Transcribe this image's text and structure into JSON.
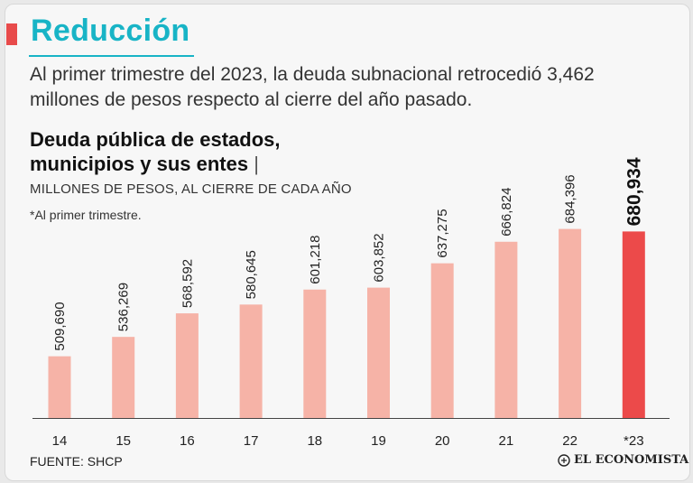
{
  "header": {
    "title": "Reducción",
    "lead": "Al primer trimestre del 2023, la deuda subnacional retrocedió 3,462 millones de pesos respecto al cierre del año pasado."
  },
  "chart_heading": {
    "line1": "Deuda pública de estados,",
    "line2": "municipios y sus entes",
    "separator": "|",
    "subtitle": "MILLONES DE PESOS, AL CIERRE DE CADA AÑO",
    "note": "*Al primer trimestre."
  },
  "footer": {
    "source": "FUENTE: SHCP",
    "logo": "EL ECONOMISTA"
  },
  "colors": {
    "accent": "#18b4c6",
    "title_bar": "#e84b4b",
    "bar": "#f6b3a7",
    "highlight_bar": "#ec4a4a"
  },
  "chart_data": {
    "type": "bar",
    "title": "Deuda pública de estados, municipios y sus entes",
    "ylabel": "Millones de pesos",
    "xlabel": "",
    "categories": [
      "14",
      "15",
      "16",
      "17",
      "18",
      "19",
      "20",
      "21",
      "22",
      "*23"
    ],
    "values": [
      509690,
      536269,
      568592,
      580645,
      601218,
      603852,
      637275,
      666824,
      684396,
      680934
    ],
    "labels": [
      "509,690",
      "536,269",
      "568,592",
      "580,645",
      "601,218",
      "603,852",
      "637,275",
      "666,824",
      "684,396",
      "680,934"
    ],
    "highlight_index": 9,
    "ylim": [
      425000,
      700000
    ],
    "grid": false,
    "legend": "none"
  }
}
